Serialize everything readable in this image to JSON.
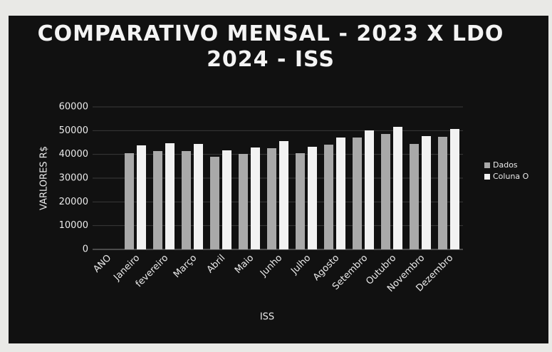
{
  "chart_data": {
    "type": "bar",
    "title": "COMPARATIVO MENSAL - 2023 X LDO 2024 - ISS",
    "x_label": "ISS",
    "y_label": "VARLORES R$",
    "categories": [
      "ANO",
      "Janeiro",
      "fevereiro",
      "Março",
      "Abril",
      "Maio",
      "Junho",
      "Julho",
      "Agosto",
      "Setembro",
      "Outubro",
      "Novembro",
      "Dezembro"
    ],
    "series": [
      {
        "name": "Dados",
        "color": "#a9a9a9",
        "values": [
          0,
          40500,
          41400,
          41400,
          39000,
          40200,
          42600,
          40500,
          44100,
          47100,
          48600,
          44400,
          47400
        ]
      },
      {
        "name": "Coluna O",
        "color": "#f2f2f2",
        "values": [
          0,
          43800,
          44700,
          44400,
          41700,
          42900,
          45600,
          43200,
          47100,
          50100,
          51600,
          47700,
          50700
        ]
      }
    ],
    "ylim": [
      0,
      60000
    ],
    "yticks": [
      0,
      10000,
      20000,
      30000,
      40000,
      50000,
      60000
    ],
    "grid": true,
    "legend": "right"
  }
}
